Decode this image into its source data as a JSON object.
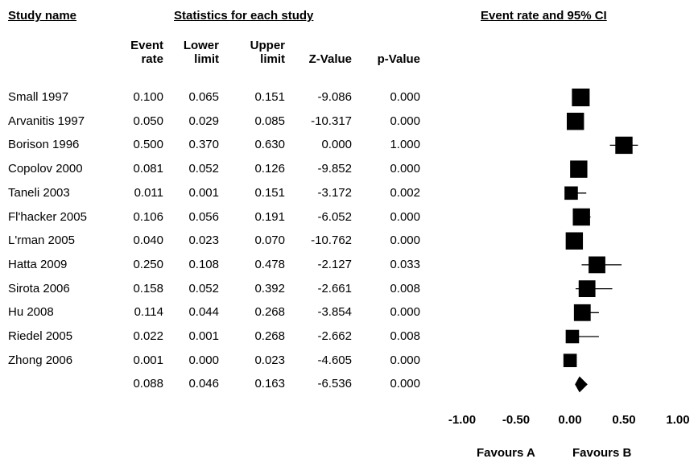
{
  "headers": {
    "study": "Study name",
    "stats": "Statistics for each study",
    "ci": "Event rate and 95% CI"
  },
  "columns": [
    {
      "line1": "Event",
      "line2": "rate"
    },
    {
      "line1": "Lower",
      "line2": "limit"
    },
    {
      "line1": "Upper",
      "line2": "limit"
    },
    {
      "line1": "",
      "line2": "Z-Value"
    },
    {
      "line1": "",
      "line2": "p-Value"
    }
  ],
  "favours": {
    "left": "Favours A",
    "right": "Favours B"
  },
  "chart_data": {
    "type": "forest",
    "xlim": [
      -1.0,
      1.0
    ],
    "x_ticks": [
      "-1.00",
      "-0.50",
      "0.00",
      "0.50",
      "1.00"
    ],
    "x_tick_values": [
      -1.0,
      -0.5,
      0.0,
      0.5,
      1.0
    ],
    "studies": [
      {
        "name": "Small 1997",
        "rate": "0.100",
        "lower": "0.065",
        "upper": "0.151",
        "z": "-9.086",
        "p": "0.000",
        "weight": 1.0
      },
      {
        "name": "Arvanitis 1997",
        "rate": "0.050",
        "lower": "0.029",
        "upper": "0.085",
        "z": "-10.317",
        "p": "0.000",
        "weight": 0.95
      },
      {
        "name": "Borison 1996",
        "rate": "0.500",
        "lower": "0.370",
        "upper": "0.630",
        "z": "0.000",
        "p": "1.000",
        "weight": 0.95
      },
      {
        "name": "Copolov 2000",
        "rate": "0.081",
        "lower": "0.052",
        "upper": "0.126",
        "z": "-9.852",
        "p": "0.000",
        "weight": 0.95
      },
      {
        "name": "Taneli 2003",
        "rate": "0.011",
        "lower": "0.001",
        "upper": "0.151",
        "z": "-3.172",
        "p": "0.002",
        "weight": 0.55
      },
      {
        "name": "Fl'hacker 2005",
        "rate": "0.106",
        "lower": "0.056",
        "upper": "0.191",
        "z": "-6.052",
        "p": "0.000",
        "weight": 0.95
      },
      {
        "name": "L'rman 2005",
        "rate": "0.040",
        "lower": "0.023",
        "upper": "0.070",
        "z": "-10.762",
        "p": "0.000",
        "weight": 0.95
      },
      {
        "name": "Hatta 2009",
        "rate": "0.250",
        "lower": "0.108",
        "upper": "0.478",
        "z": "-2.127",
        "p": "0.033",
        "weight": 0.9
      },
      {
        "name": "Sirota 2006",
        "rate": "0.158",
        "lower": "0.052",
        "upper": "0.392",
        "z": "-2.661",
        "p": "0.008",
        "weight": 0.9
      },
      {
        "name": "Hu 2008",
        "rate": "0.114",
        "lower": "0.044",
        "upper": "0.268",
        "z": "-3.854",
        "p": "0.000",
        "weight": 0.9
      },
      {
        "name": "Riedel 2005",
        "rate": "0.022",
        "lower": "0.001",
        "upper": "0.268",
        "z": "-2.662",
        "p": "0.008",
        "weight": 0.55
      },
      {
        "name": "Zhong 2006",
        "rate": "0.001",
        "lower": "0.000",
        "upper": "0.023",
        "z": "-4.605",
        "p": "0.000",
        "weight": 0.55
      }
    ],
    "summary": {
      "name": "",
      "rate": "0.088",
      "lower": "0.046",
      "upper": "0.163",
      "z": "-6.536",
      "p": "0.000"
    }
  }
}
